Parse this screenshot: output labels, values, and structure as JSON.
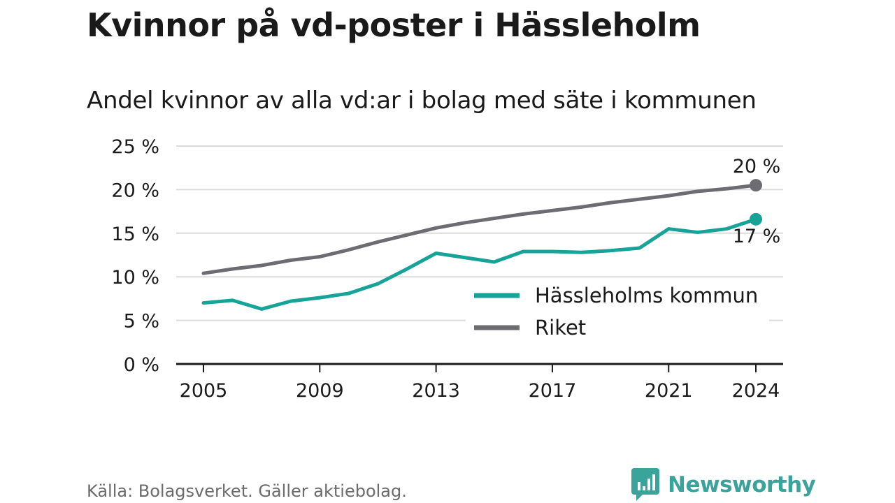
{
  "title": "Kvinnor på vd-poster i Hässleholm",
  "subtitle": "Andel kvinnor av alla vd:ar i bolag med säte i kommunen",
  "source": "Källa: Bolagsverket. Gäller aktiebolag.",
  "brand": {
    "name": "Newsworthy",
    "color": "#3aa39a"
  },
  "chart_data": {
    "type": "line",
    "x": [
      2005,
      2006,
      2007,
      2008,
      2009,
      2010,
      2011,
      2012,
      2013,
      2014,
      2015,
      2016,
      2017,
      2018,
      2019,
      2020,
      2021,
      2022,
      2023,
      2024
    ],
    "series": [
      {
        "name": "Hässleholms kommun",
        "color": "#17a398",
        "values": [
          7.0,
          7.3,
          6.3,
          7.2,
          7.6,
          8.1,
          9.2,
          10.9,
          12.7,
          12.2,
          11.7,
          12.9,
          12.9,
          12.8,
          13.0,
          13.3,
          15.5,
          15.1,
          15.5,
          16.6
        ],
        "end_label": "17 %"
      },
      {
        "name": "Riket",
        "color": "#6d6c72",
        "values": [
          10.4,
          10.9,
          11.3,
          11.9,
          12.3,
          13.1,
          14.0,
          14.8,
          15.6,
          16.2,
          16.7,
          17.2,
          17.6,
          18.0,
          18.5,
          18.9,
          19.3,
          19.8,
          20.1,
          20.5
        ],
        "end_label": "20 %"
      }
    ],
    "xticks": [
      "2005",
      "2009",
      "2013",
      "2017",
      "2021",
      "2024"
    ],
    "yticks": [
      "0 %",
      "5 %",
      "10 %",
      "15 %",
      "20 %",
      "25 %"
    ],
    "ylim": [
      0,
      25
    ],
    "grid": true,
    "legend": "bottom-right"
  }
}
